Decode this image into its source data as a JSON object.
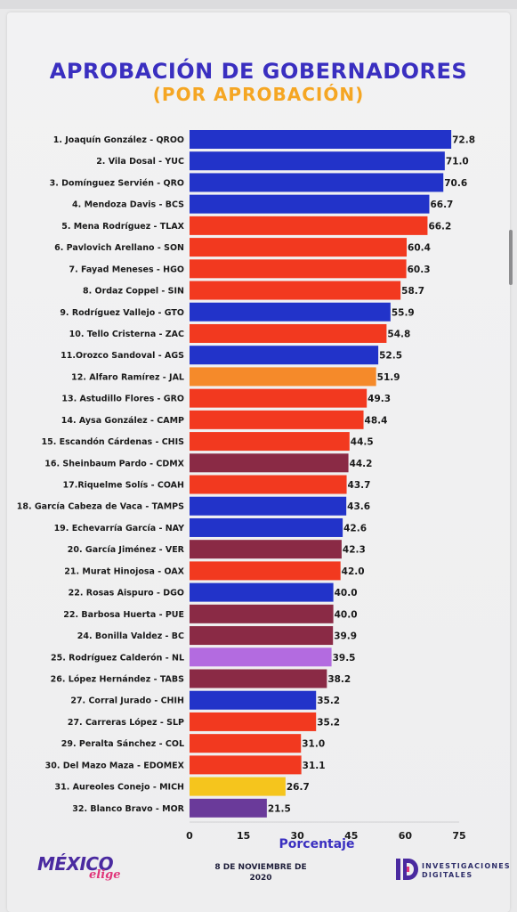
{
  "colors": {
    "title": "#3a2fc0",
    "subtitle": "#f5a623",
    "blue": "#2233c9",
    "red": "#f2391f",
    "maroon": "#8a2a45",
    "orange": "#f58a2a",
    "lilac": "#b36be0",
    "yellow": "#f5c51d",
    "purple": "#6a3a9a",
    "xlabel": "#3a2fc0",
    "logo_main": "#4a2aa0",
    "logo_accent": "#e0357a"
  },
  "chart_data": {
    "type": "bar",
    "orientation": "horizontal",
    "title": "APROBACIÓN DE GOBERNADORES",
    "subtitle": "(POR APROBACIÓN)",
    "xlabel": "Porcentaje",
    "xlim": [
      0,
      75
    ],
    "xticks": [
      "0",
      "15",
      "30",
      "45",
      "60",
      "75"
    ],
    "grid": false,
    "legend": "none",
    "categories": [
      "1. Joaquín González - QROO",
      "2. Vila Dosal - YUC",
      "3. Domínguez Servién - QRO",
      "4. Mendoza Davis - BCS",
      "5. Mena Rodríguez - TLAX",
      "6. Pavlovich Arellano - SON",
      "7. Fayad Meneses - HGO",
      "8. Ordaz Coppel - SIN",
      "9. Rodríguez Vallejo - GTO",
      "10. Tello Cristerna - ZAC",
      "11.Orozco Sandoval - AGS",
      "12. Alfaro Ramírez - JAL",
      "13. Astudillo Flores - GRO",
      "14. Aysa González - CAMP",
      "15. Escandón Cárdenas - CHIS",
      "16. Sheinbaum Pardo - CDMX",
      "17.Riquelme Solís - COAH",
      "18. García Cabeza de Vaca - TAMPS",
      "19. Echevarría García - NAY",
      "20. García Jiménez - VER",
      "21. Murat Hinojosa - OAX",
      "22. Rosas Aispuro - DGO",
      "22. Barbosa Huerta - PUE",
      "24. Bonilla Valdez - BC",
      "25. Rodríguez Calderón - NL",
      "26. López Hernández - TABS",
      "27. Corral Jurado - CHIH",
      "27. Carreras López - SLP",
      "29. Peralta Sánchez - COL",
      "30. Del Mazo Maza - EDOMEX",
      "31. Aureoles Conejo - MICH",
      "32. Blanco Bravo - MOR"
    ],
    "values": [
      72.8,
      71.0,
      70.6,
      66.7,
      66.2,
      60.4,
      60.3,
      58.7,
      55.9,
      54.8,
      52.5,
      51.9,
      49.3,
      48.4,
      44.5,
      44.2,
      43.7,
      43.6,
      42.6,
      42.3,
      42.0,
      40.0,
      40.0,
      39.9,
      39.5,
      38.2,
      35.2,
      35.2,
      31.0,
      31.1,
      26.7,
      21.5
    ],
    "value_labels": [
      "72.8",
      "71.0",
      "70.6",
      "66.7",
      "66.2",
      "60.4",
      "60.3",
      "58.7",
      "55.9",
      "54.8",
      "52.5",
      "51.9",
      "49.3",
      "48.4",
      "44.5",
      "44.2",
      "43.7",
      "43.6",
      "42.6",
      "42.3",
      "42.0",
      "40.0",
      "40.0",
      "39.9",
      "39.5",
      "38.2",
      "35.2",
      "35.2",
      "31.0",
      "31.1",
      "26.7",
      "21.5"
    ],
    "bar_colors": [
      "blue",
      "blue",
      "blue",
      "blue",
      "red",
      "red",
      "red",
      "red",
      "blue",
      "red",
      "blue",
      "orange",
      "red",
      "red",
      "red",
      "maroon",
      "red",
      "blue",
      "blue",
      "maroon",
      "red",
      "blue",
      "maroon",
      "maroon",
      "lilac",
      "maroon",
      "blue",
      "red",
      "red",
      "red",
      "yellow",
      "purple"
    ]
  },
  "footer": {
    "logo_left_main": "MÉXICO",
    "logo_left_sub": "elige",
    "date_line1": "8 DE NOVIEMBRE  DE",
    "date_line2": "2020",
    "logo_right_line1": "INVESTIGACIONES",
    "logo_right_line2": "DIGITALES"
  }
}
